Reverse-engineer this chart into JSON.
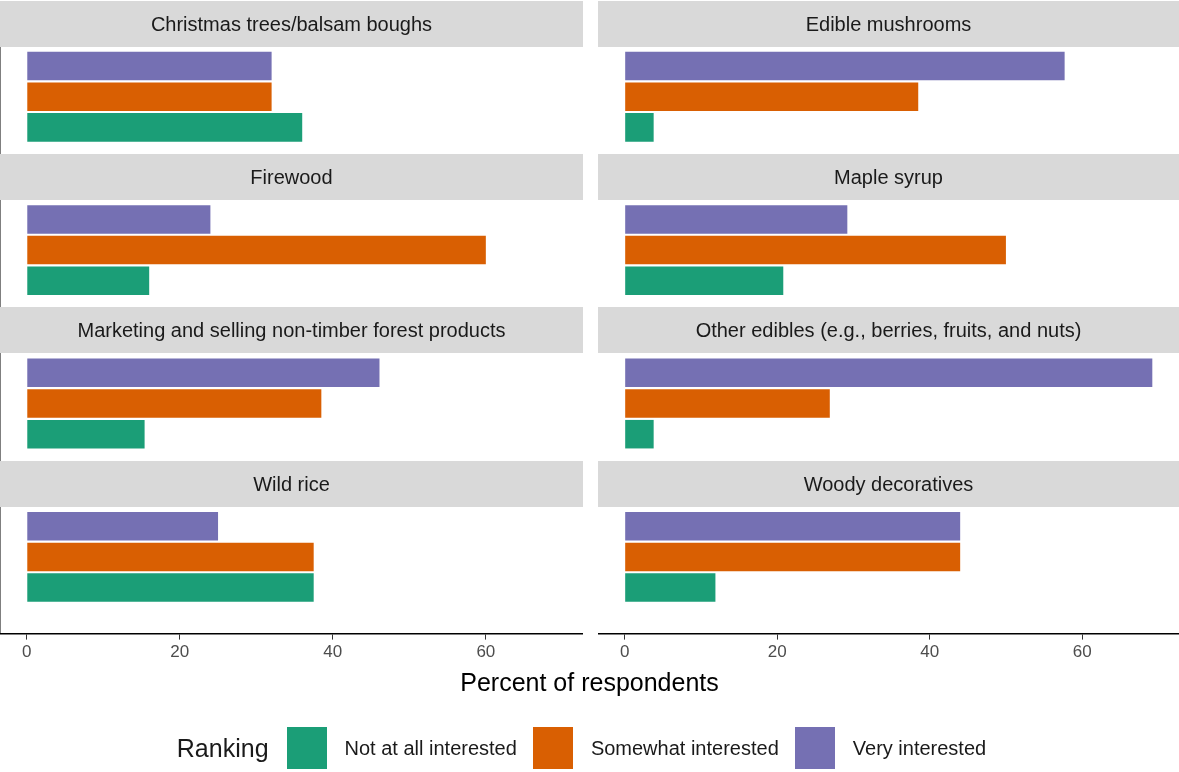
{
  "chart_data": [
    {
      "type": "bar",
      "orientation": "horizontal",
      "categories": [
        "Christmas trees/balsam boughs",
        "Firewood",
        "Marketing and selling non-timber forest products",
        "Wild rice"
      ],
      "xlim": [
        -3.5,
        72.7
      ],
      "xticks": [
        0,
        20,
        40,
        60
      ],
      "xlabel": "Percent of respondents",
      "legend": "bottom",
      "legend_title": "Ranking",
      "series": [
        {
          "name": "Not at all interested",
          "color": "#1b9e77",
          "values": [
            36,
            16,
            15.4,
            37.5
          ]
        },
        {
          "name": "Somewhat interested",
          "color": "#d95f02",
          "values": [
            32,
            60,
            38.5,
            37.5
          ]
        },
        {
          "name": "Very interested",
          "color": "#7570b3",
          "values": [
            32,
            24,
            46.1,
            25
          ]
        }
      ]
    },
    {
      "type": "bar",
      "orientation": "horizontal",
      "categories": [
        "Edible mushrooms",
        "Maple syrup",
        "Other edibles (e.g., berries, fruits, and nuts)",
        "Woody decoratives"
      ],
      "xlim": [
        -3.5,
        72.7
      ],
      "xticks": [
        0,
        20,
        40,
        60
      ],
      "series": [
        {
          "color": "#1b9e77",
          "values": [
            3.8,
            20.8,
            3.8,
            11.9
          ]
        },
        {
          "color": "#d95f02",
          "values": [
            38.5,
            50,
            26.9,
            44
          ]
        },
        {
          "color": "#7570b3",
          "values": [
            57.7,
            29.2,
            69.2,
            44
          ]
        }
      ]
    }
  ]
}
